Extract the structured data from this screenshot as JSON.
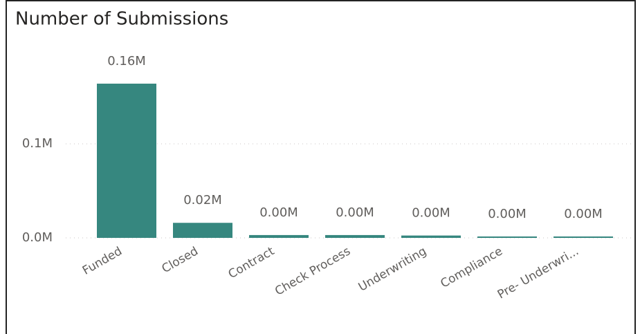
{
  "chart_data": {
    "type": "bar",
    "title": "Number of Submissions",
    "categories": [
      "Funded",
      "Closed",
      "Contract",
      "Check Process",
      "Underwriting",
      "Compliance",
      "Pre- Underwri..."
    ],
    "values": [
      164000,
      16000,
      3000,
      3000,
      2500,
      1500,
      1500
    ],
    "value_labels": [
      "0.16M",
      "0.02M",
      "0.00M",
      "0.00M",
      "0.00M",
      "0.00M",
      "0.00M"
    ],
    "color": "#36877f",
    "ylim": [
      0,
      180000
    ],
    "yticks": [
      {
        "value": 0,
        "label": "0.0M"
      },
      {
        "value": 100000,
        "label": "0.1M"
      }
    ],
    "grid": true
  }
}
